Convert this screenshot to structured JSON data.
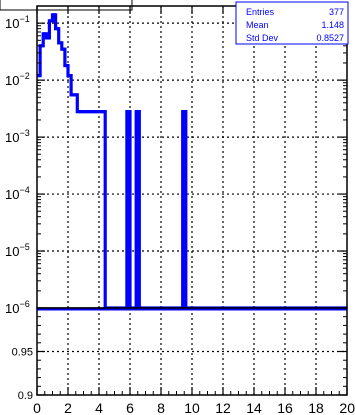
{
  "title_tab": "",
  "stats_box": {
    "rows": [
      {
        "label": "Entries",
        "value": "377"
      },
      {
        "label": "Mean",
        "value": "1.148"
      },
      {
        "label": "Std Dev",
        "value": "0.8527"
      }
    ]
  },
  "colors": {
    "histogram": "#0000ff",
    "stats_text": "#0000ff",
    "frame": "#000000",
    "grid": "#000000",
    "background": "#ffffff"
  },
  "chart_data": [
    {
      "type": "line",
      "panel": "top",
      "xlabel": "",
      "ylabel": "",
      "xlim": [
        0,
        20
      ],
      "ylim": [
        1e-06,
        0.2
      ],
      "yscale": "log",
      "grid": true,
      "x_ticks": [
        0,
        2,
        4,
        6,
        8,
        10,
        12,
        14,
        16,
        18,
        20
      ],
      "y_tick_labels": [
        {
          "value": 0.1,
          "mantissa": "10",
          "exp": "−1"
        },
        {
          "value": 0.01,
          "mantissa": "10",
          "exp": "−2"
        },
        {
          "value": 0.001,
          "mantissa": "10",
          "exp": "−3"
        },
        {
          "value": 0.0001,
          "mantissa": "10",
          "exp": "−4"
        },
        {
          "value": 1e-05,
          "mantissa": "10",
          "exp": "−5"
        },
        {
          "value": 1e-06,
          "mantissa": "10",
          "exp": "−6"
        }
      ],
      "bin_width": 0.2,
      "floor": 1e-06,
      "bins": [
        [
          0.0,
          0.012
        ],
        [
          0.2,
          0.04
        ],
        [
          0.4,
          0.065
        ],
        [
          0.6,
          0.055
        ],
        [
          0.8,
          0.11
        ],
        [
          1.0,
          0.14
        ],
        [
          1.2,
          0.08
        ],
        [
          1.4,
          0.045
        ],
        [
          1.6,
          0.035
        ],
        [
          1.8,
          0.018
        ],
        [
          2.0,
          0.012
        ],
        [
          2.2,
          0.0055
        ],
        [
          2.4,
          0.0055
        ],
        [
          2.6,
          0.0028
        ],
        [
          2.8,
          0.0028
        ],
        [
          3.0,
          0.0028
        ],
        [
          3.2,
          0.0028
        ],
        [
          3.4,
          0.0028
        ],
        [
          3.6,
          0.0028
        ],
        [
          3.8,
          0.0028
        ],
        [
          4.0,
          0.0028
        ],
        [
          4.2,
          0.0028
        ],
        [
          5.8,
          0.0028
        ],
        [
          6.4,
          0.0028
        ],
        [
          9.4,
          0.0028
        ]
      ]
    },
    {
      "type": "line",
      "panel": "bottom",
      "xlabel": "",
      "ylabel": "",
      "xlim": [
        0,
        20
      ],
      "ylim": [
        0.9,
        1.0
      ],
      "grid": true,
      "x_ticks": [
        0,
        2,
        4,
        6,
        8,
        10,
        12,
        14,
        16,
        18,
        20
      ],
      "y_ticks": [
        0.9,
        0.95
      ],
      "y_tick_labels": [
        "0.9",
        "0.95"
      ],
      "series": [
        {
          "x": [
            0,
            20
          ],
          "y": [
            1.0,
            1.0
          ]
        }
      ]
    }
  ]
}
